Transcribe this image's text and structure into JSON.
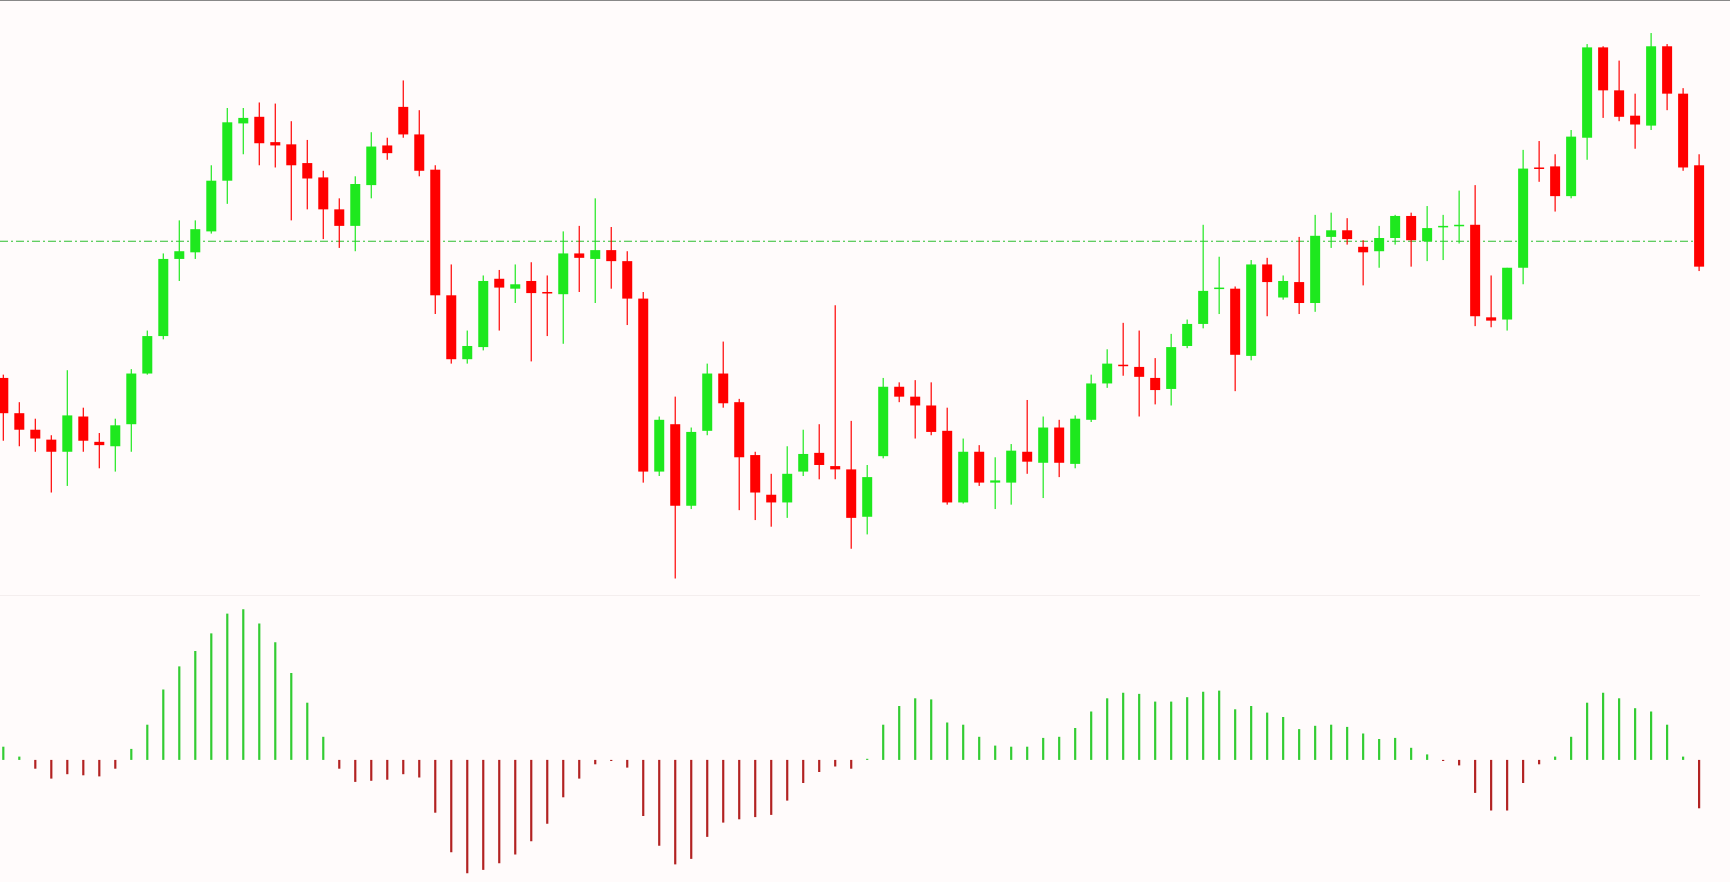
{
  "chart_data": [
    {
      "type": "candlestick",
      "open": [
        197,
        165,
        150,
        141,
        130,
        162,
        139,
        135,
        155,
        201,
        235,
        305,
        311,
        330,
        376,
        428,
        434,
        411,
        409,
        392,
        379,
        350,
        335,
        372,
        408,
        443,
        418,
        386,
        272,
        214,
        225,
        287,
        278,
        285,
        275,
        273,
        310,
        305,
        313,
        303,
        269,
        112,
        155,
        81,
        149,
        201,
        175,
        127,
        91,
        84,
        112,
        129,
        117,
        114,
        71,
        126,
        189,
        180,
        172,
        149,
        84,
        130,
        102,
        102,
        130,
        120,
        152,
        119,
        159,
        192,
        209,
        207,
        197,
        187,
        226,
        246,
        278,
        278,
        217,
        300,
        270,
        284,
        265,
        325,
        331,
        316,
        312,
        324,
        344,
        321,
        334,
        335,
        336,
        252,
        250,
        297,
        388,
        389,
        362,
        415,
        497,
        458,
        435,
        426,
        498,
        455,
        390
      ],
      "high": [
        200,
        175,
        160,
        145,
        204,
        170,
        147,
        160,
        205,
        240,
        310,
        340,
        340,
        390,
        442,
        442,
        447,
        446,
        430,
        413,
        385,
        360,
        380,
        420,
        415,
        467,
        440,
        390,
        300,
        240,
        290,
        295,
        300,
        302,
        290,
        330,
        335,
        360,
        334,
        312,
        275,
        162,
        180,
        152,
        210,
        230,
        178,
        130,
        110,
        135,
        150,
        155,
        263,
        158,
        118,
        197,
        193,
        195,
        193,
        170,
        142,
        136,
        125,
        137,
        177,
        162,
        159,
        163,
        200,
        223,
        247,
        240,
        215,
        237,
        250,
        336,
        307,
        280,
        304,
        306,
        290,
        325,
        345,
        347,
        342,
        322,
        335,
        345,
        347,
        353,
        345,
        367,
        372,
        290,
        297,
        404,
        412,
        400,
        422,
        500,
        498,
        485,
        455,
        510,
        500,
        460,
        400
      ],
      "low": [
        140,
        135,
        130,
        93,
        99,
        130,
        115,
        112,
        130,
        200,
        232,
        285,
        305,
        328,
        355,
        400,
        390,
        388,
        340,
        350,
        323,
        315,
        312,
        360,
        395,
        415,
        380,
        255,
        210,
        210,
        222,
        240,
        265,
        212,
        235,
        228,
        275,
        265,
        278,
        245,
        102,
        108,
        15,
        78,
        145,
        170,
        77,
        68,
        62,
        70,
        108,
        105,
        105,
        42,
        55,
        124,
        175,
        142,
        145,
        82,
        83,
        99,
        78,
        82,
        110,
        88,
        107,
        115,
        157,
        188,
        199,
        162,
        173,
        172,
        224,
        242,
        255,
        185,
        213,
        253,
        268,
        255,
        257,
        315,
        318,
        281,
        297,
        318,
        298,
        303,
        304,
        319,
        244,
        243,
        240,
        282,
        375,
        348,
        360,
        395,
        433,
        430,
        405,
        422,
        440,
        385,
        294
      ],
      "close": [
        165,
        150,
        142,
        130,
        163,
        140,
        136,
        154,
        201,
        235,
        305,
        312,
        332,
        376,
        429,
        433,
        410,
        408,
        390,
        378,
        350,
        335,
        373,
        407,
        401,
        418,
        385,
        272,
        214,
        226,
        285,
        279,
        282,
        274,
        274,
        310,
        306,
        313,
        303,
        269,
        112,
        159,
        81,
        148,
        201,
        174,
        125,
        93,
        84,
        110,
        128,
        118,
        114,
        70,
        107,
        189,
        180,
        172,
        148,
        84,
        130,
        102,
        104,
        131,
        121,
        152,
        120,
        160,
        192,
        210,
        208,
        198,
        186,
        225,
        246,
        276,
        279,
        218,
        300,
        284,
        285,
        265,
        326,
        331,
        323,
        311,
        324,
        344,
        322,
        333,
        335,
        336,
        253,
        249,
        297,
        387,
        387,
        362,
        416,
        497,
        458,
        434,
        427,
        498,
        455,
        388,
        298
      ],
      "up_color": "#1ee81e",
      "down_color": "#ff0000",
      "reference_line": 321,
      "reference_color": "#2fbf2f",
      "ylim": [
        0,
        540
      ]
    },
    {
      "type": "histogram",
      "values": [
        12,
        3,
        -8,
        -17,
        -13,
        -14,
        -15,
        -8,
        10,
        32,
        64,
        85,
        99,
        115,
        133,
        137,
        124,
        107,
        79,
        52,
        21,
        -8,
        -20,
        -19,
        -18,
        -13,
        -16,
        -48,
        -84,
        -103,
        -100,
        -94,
        -86,
        -74,
        -58,
        -34,
        -17,
        -4,
        -1,
        -7,
        -51,
        -78,
        -95,
        -90,
        -70,
        -57,
        -54,
        -52,
        -50,
        -37,
        -21,
        -11,
        -6,
        -8,
        1,
        32,
        49,
        56,
        55,
        34,
        32,
        21,
        13,
        12,
        12,
        20,
        21,
        29,
        44,
        56,
        61,
        60,
        53,
        53,
        57,
        62,
        63,
        46,
        49,
        43,
        39,
        28,
        31,
        32,
        30,
        24,
        19,
        20,
        11,
        5,
        -1,
        -5,
        -30,
        -46,
        -46,
        -21,
        -4,
        3,
        21,
        52,
        61,
        56,
        47,
        44,
        32,
        3,
        -44
      ],
      "up_color": "#33cc33",
      "down_color": "#b22222",
      "ylim": [
        -111,
        149
      ]
    }
  ]
}
